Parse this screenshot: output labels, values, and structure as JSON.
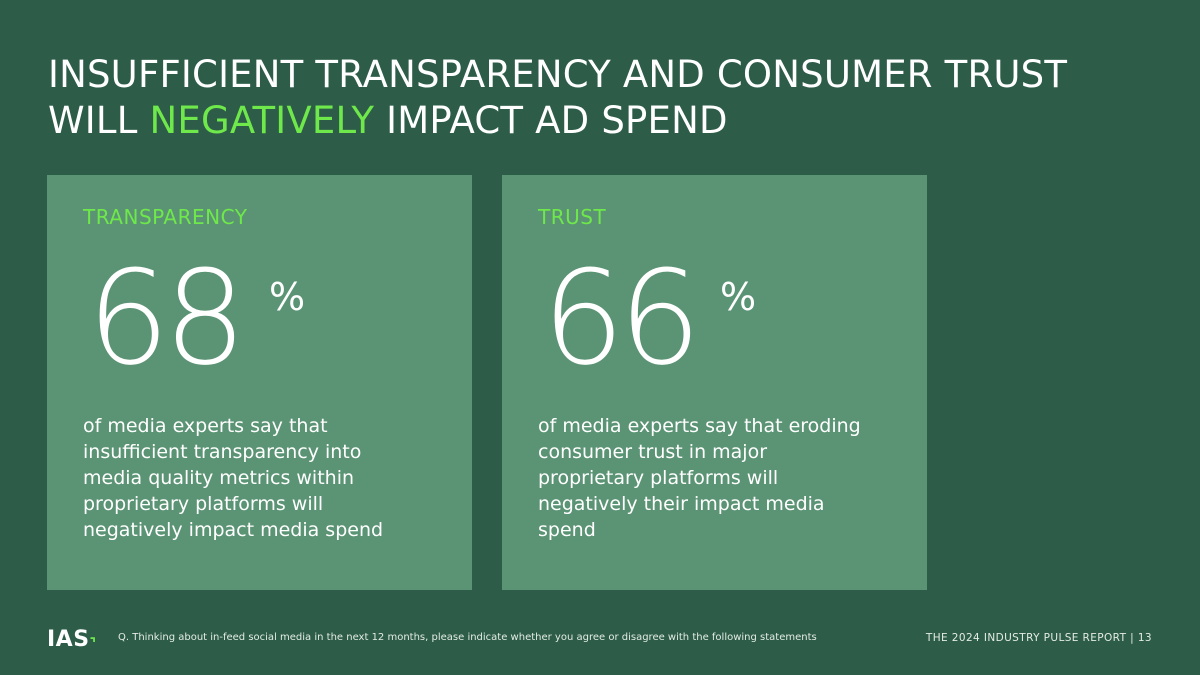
{
  "title": {
    "line1": "INSUFFICIENT TRANSPARENCY AND CONSUMER TRUST",
    "line2_pre": "WILL ",
    "line2_highlight": "NEGATIVELY",
    "line2_post": " IMPACT AD SPEND"
  },
  "cards": [
    {
      "label": "TRANSPARENCY",
      "value": "68",
      "unit": "%",
      "description": "of media experts say that insufficient transparency into media quality metrics within proprietary platforms will negatively impact media spend"
    },
    {
      "label": "TRUST",
      "value": "66",
      "unit": "%",
      "description": "of media experts say that eroding consumer trust in major proprietary platforms will negatively their impact media spend"
    }
  ],
  "footer": {
    "logo": "IAS",
    "question": "Q. Thinking about in-feed social media in the next 12 months, please indicate whether you agree or disagree with the following statements",
    "report": "THE 2024 INDUSTRY PULSE REPORT  |  13"
  },
  "colors": {
    "background": "#2d5c48",
    "card": "#5b9474",
    "accent": "#6ee84a"
  }
}
